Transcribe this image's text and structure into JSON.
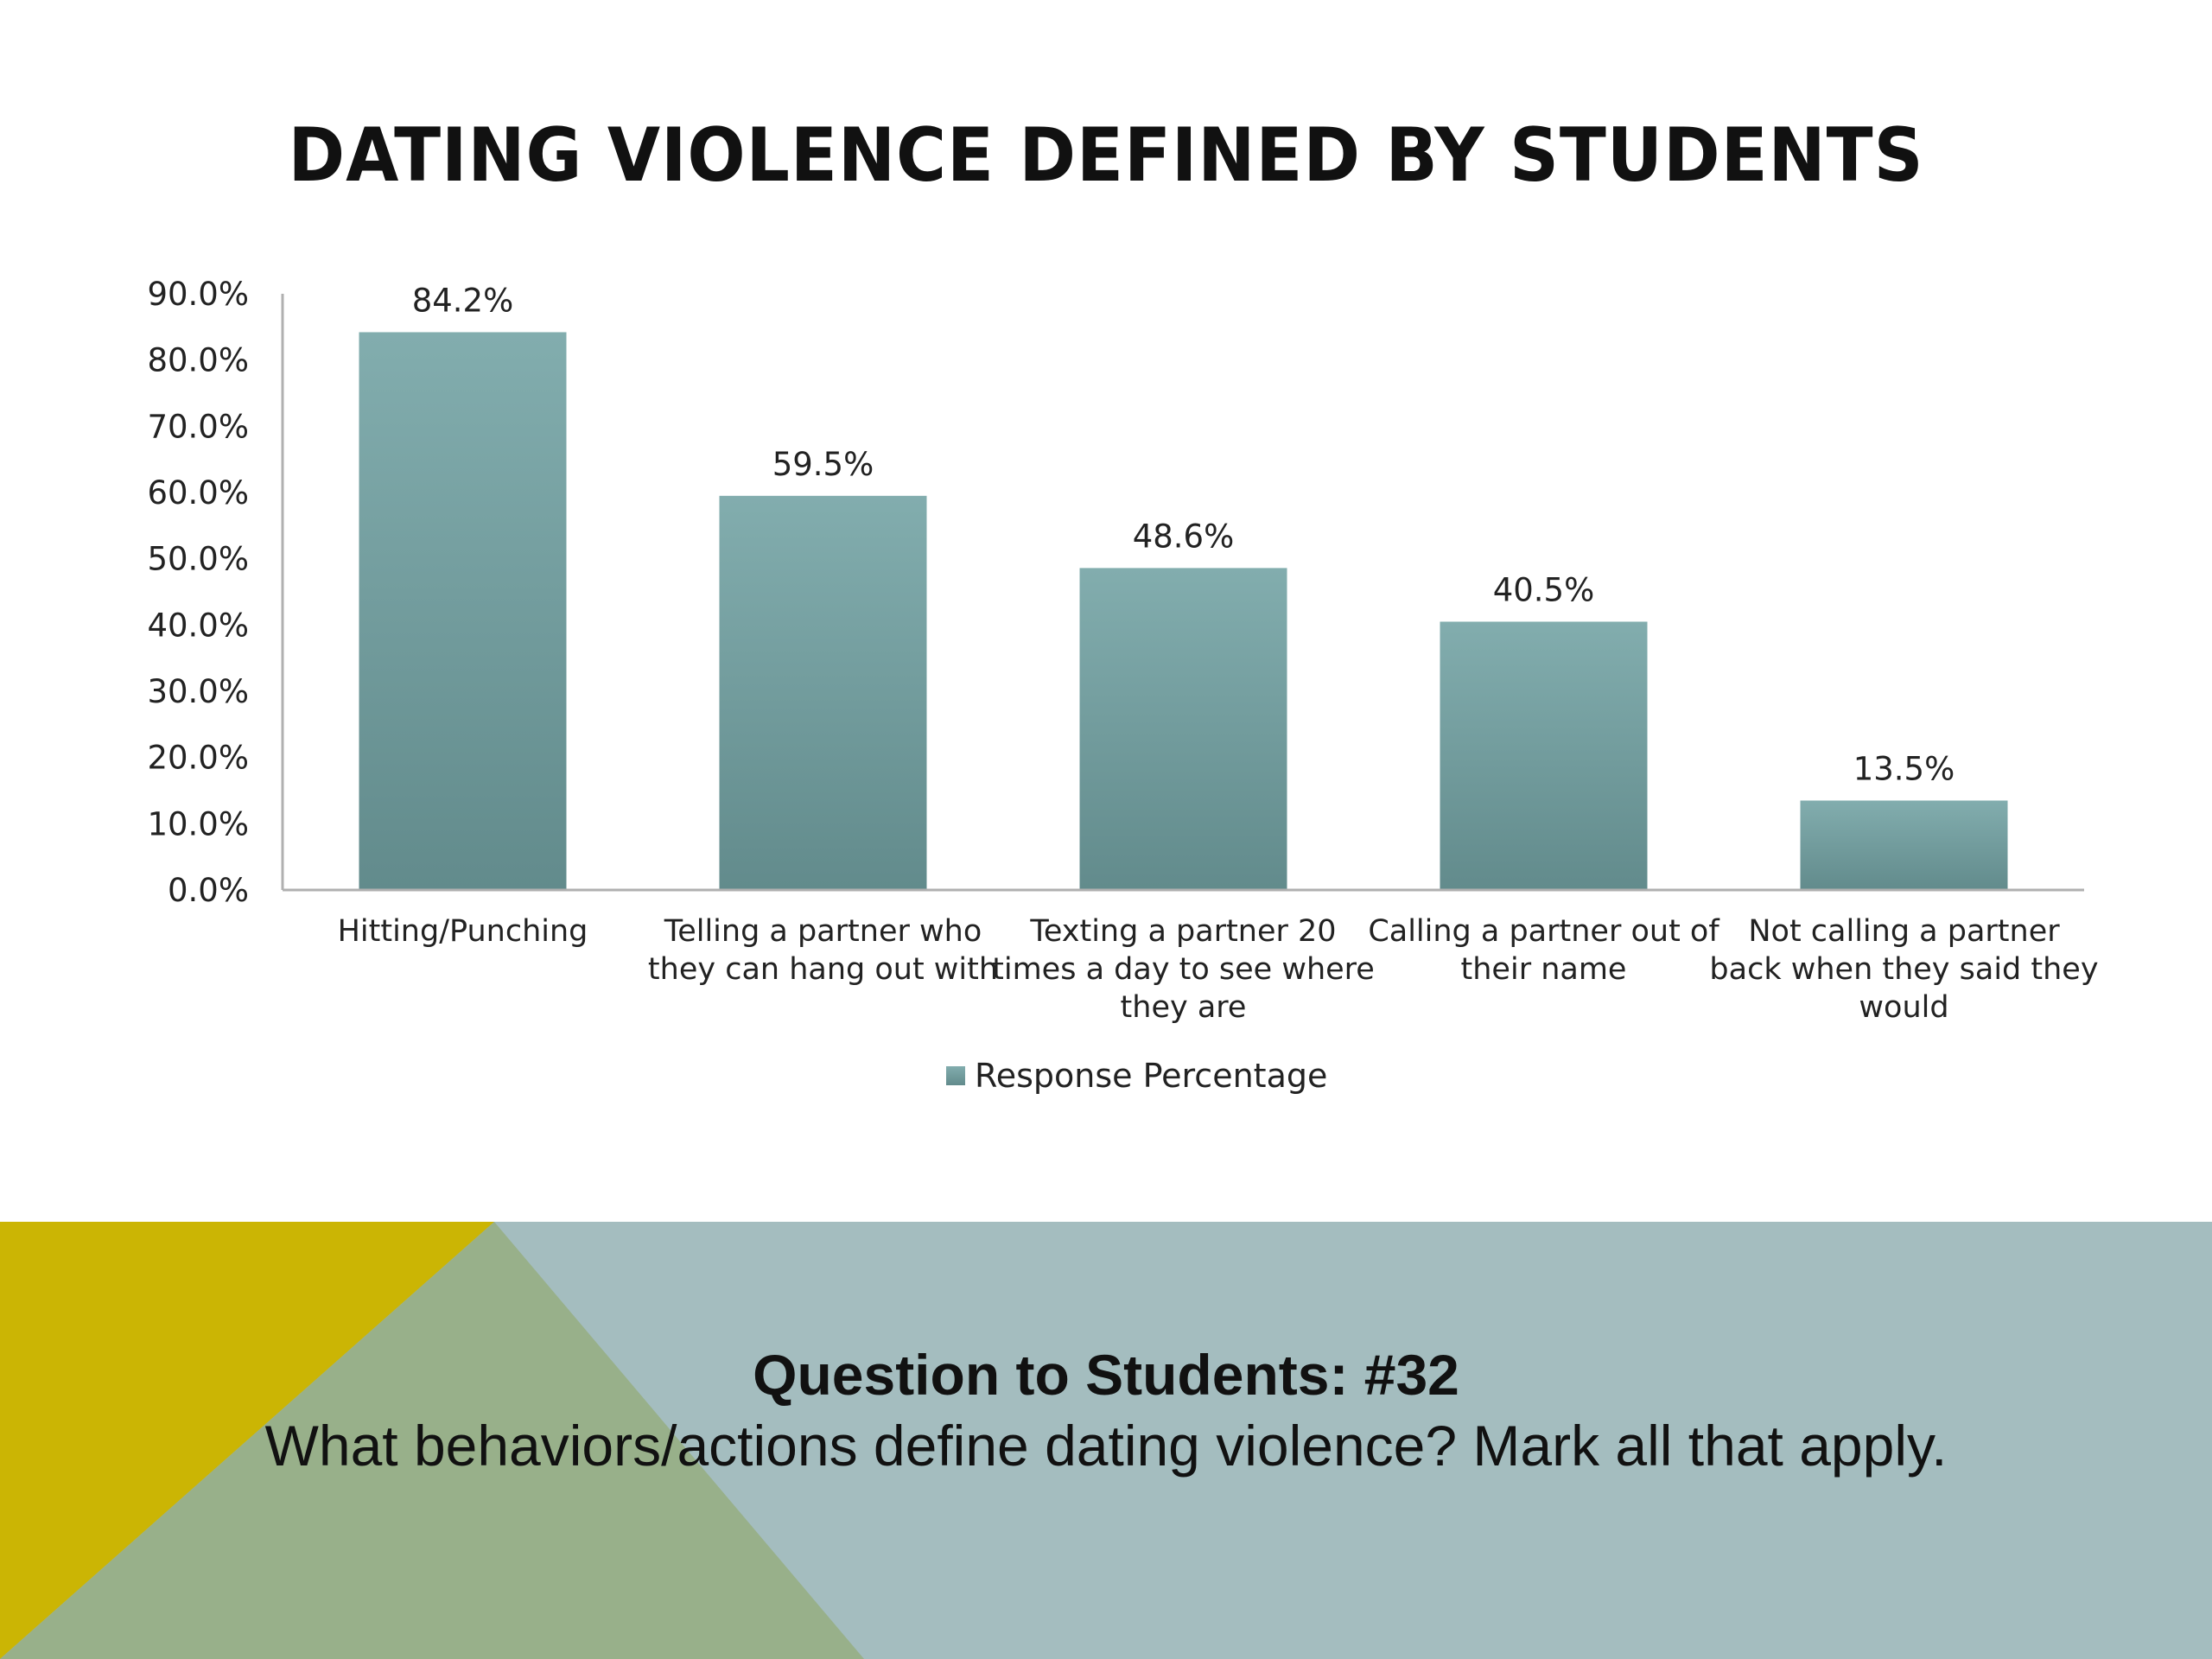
{
  "slide": {
    "title": "DATING VIOLENCE DEFINED BY STUDENTS",
    "question_title": "Question to Students: #32",
    "question_text": "What behaviors/actions define dating violence? Mark all that apply."
  },
  "colors": {
    "bar_top": "#82adae",
    "bar_bottom": "#628b8c",
    "band_blue": "#a4bdbf",
    "band_yellow": "#cbb504",
    "band_green": "#98b08a",
    "axis": "#b0b0b0"
  },
  "chart_data": {
    "type": "bar",
    "title": "",
    "xlabel": "",
    "ylabel": "",
    "ylim": [
      0,
      90
    ],
    "y_ticks": [
      "90.0%",
      "80.0%",
      "70.0%",
      "60.0%",
      "50.0%",
      "40.0%",
      "30.0%",
      "20.0%",
      "10.0%",
      "0.0%"
    ],
    "categories": [
      [
        "Hitting/Punching"
      ],
      [
        "Telling a partner who",
        "they can hang out with"
      ],
      [
        "Texting a partner 20",
        "times a day to see where",
        "they are"
      ],
      [
        "Calling a partner out of",
        "their name"
      ],
      [
        "Not calling a partner",
        "back when they said they",
        "would"
      ]
    ],
    "series": [
      {
        "name": "Response Percentage",
        "values": [
          84.2,
          59.5,
          48.6,
          40.5,
          13.5
        ],
        "labels": [
          "84.2%",
          "59.5%",
          "48.6%",
          "40.5%",
          "13.5%"
        ]
      }
    ],
    "grid": false,
    "legend": "bottom"
  }
}
